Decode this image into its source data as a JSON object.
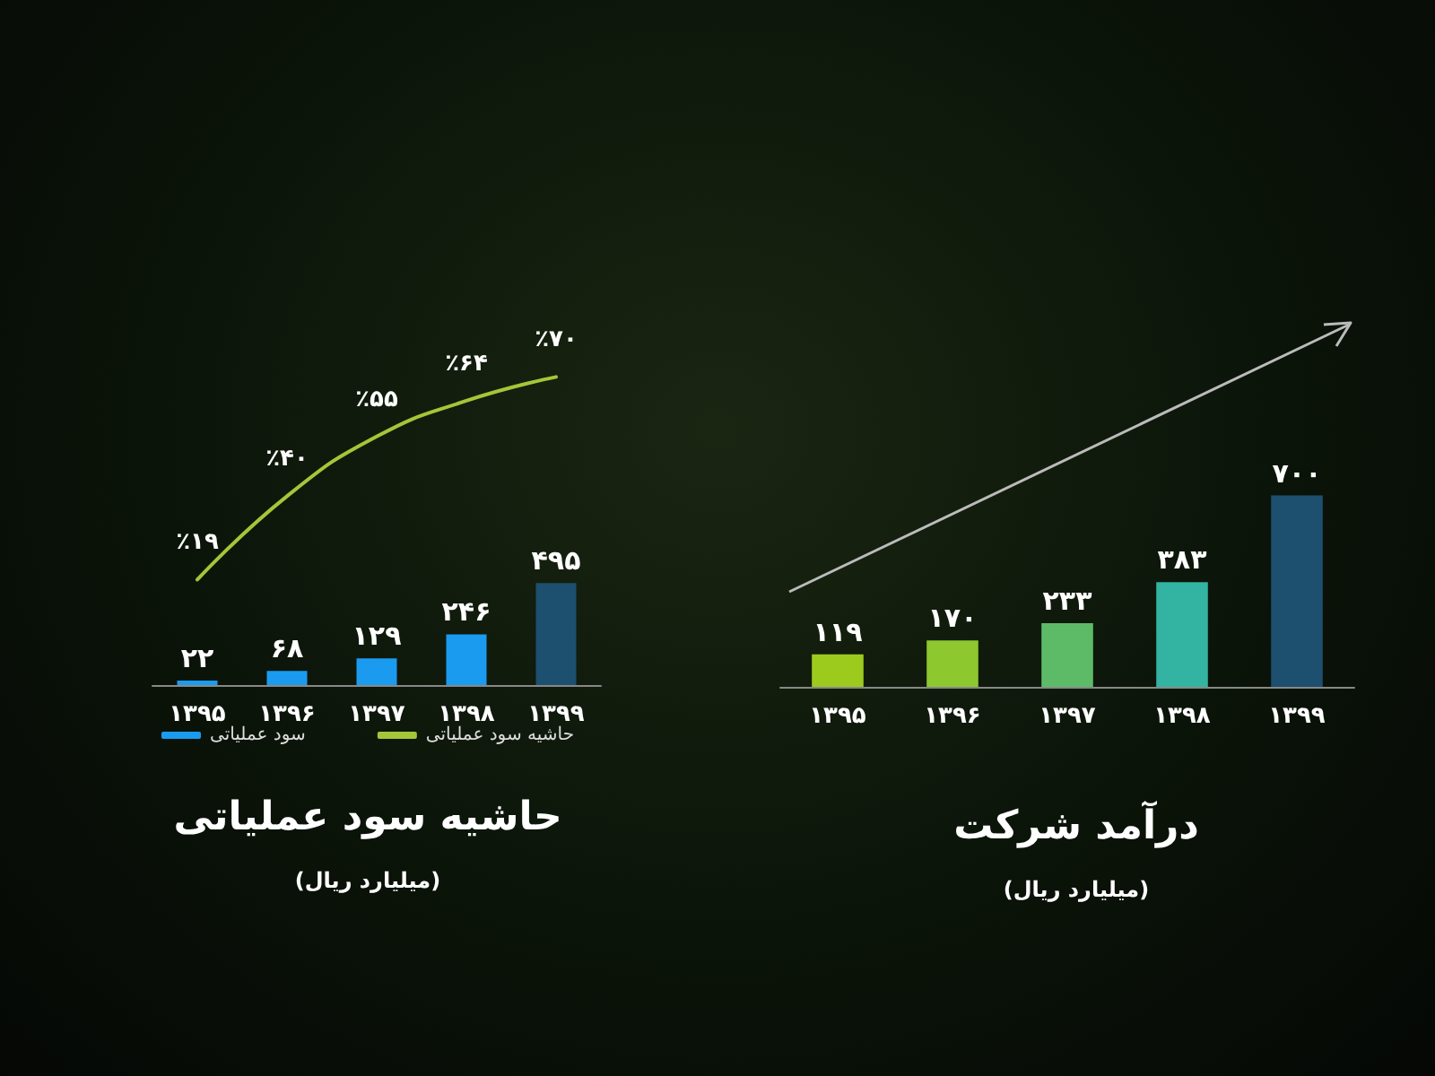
{
  "chart_data": [
    {
      "type": "bar",
      "title": "حاشیه سود عملیاتی",
      "subtitle": "(میلیارد ریال)",
      "categories": [
        "۱۳۹۵",
        "۱۳۹۶",
        "۱۳۹۷",
        "۱۳۹۸",
        "۱۳۹۹"
      ],
      "series": [
        {
          "name": "سود عملیاتی",
          "type": "bar",
          "color": "#1a9bf0",
          "colors": [
            "#1a9bf0",
            "#1a9bf0",
            "#1a9bf0",
            "#1a9bf0",
            "#1d4f6e"
          ],
          "values": [
            22,
            68,
            129,
            246,
            495
          ],
          "value_labels": [
            "۲۲",
            "۶۸",
            "۱۲۹",
            "۲۴۶",
            "۴۹۵"
          ]
        },
        {
          "name": "حاشیه سود عملیاتی",
          "type": "line",
          "axis": "y2",
          "color": "#a4c639",
          "values": [
            19,
            40,
            55,
            64,
            70
          ],
          "value_labels": [
            "٪۱۹",
            "٪۴۰",
            "٪۵۵",
            "٪۶۴",
            "٪۷۰"
          ]
        }
      ],
      "legend": "bottom",
      "grid": false,
      "marker": "none"
    },
    {
      "type": "bar",
      "title": "درآمد شرکت",
      "subtitle": "(میلیارد ریال)",
      "categories": [
        "۱۳۹۵",
        "۱۳۹۶",
        "۱۳۹۷",
        "۱۳۹۸",
        "۱۳۹۹"
      ],
      "values": [
        119,
        170,
        233,
        383,
        700
      ],
      "colors": [
        "#9ccb1e",
        "#8cc82e",
        "#5dbb68",
        "#33b3a2",
        "#1d4f6e"
      ],
      "value_labels": [
        "۱۱۹",
        "۱۷۰",
        "۲۳۳",
        "۳۸۳",
        "۷۰۰"
      ],
      "grid": false,
      "legend": false
    }
  ]
}
